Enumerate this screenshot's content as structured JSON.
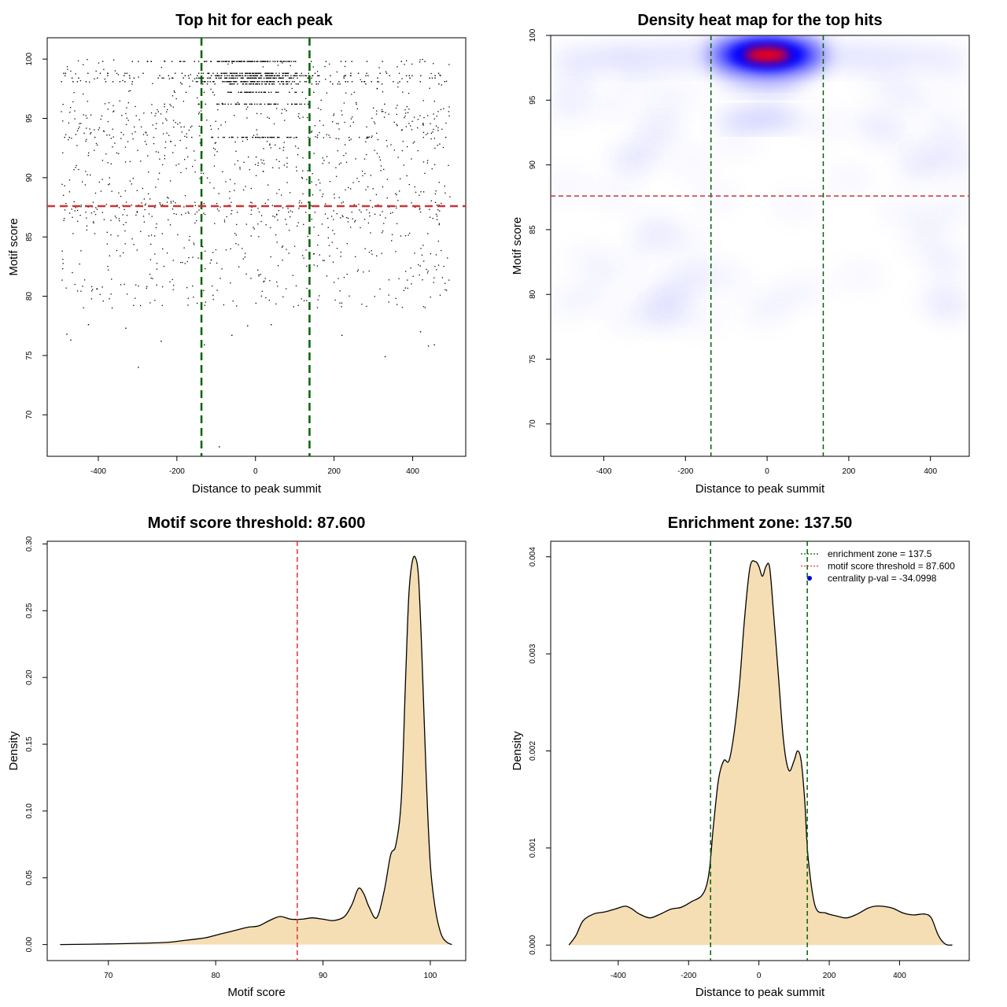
{
  "chart_data": [
    {
      "id": "scatter",
      "type": "scatter",
      "title": "Top hit for each peak",
      "xlabel": "Distance to peak summit",
      "ylabel": "Motif score",
      "xlim": [
        -530,
        535
      ],
      "ylim": [
        66.5,
        101.8
      ],
      "xticks": [
        -400,
        -200,
        0,
        200,
        400
      ],
      "yticks": [
        70,
        75,
        80,
        85,
        90,
        95,
        100
      ],
      "vlines": [
        -137.5,
        137.5
      ],
      "hline": 87.6,
      "vline_color": "#006400",
      "hline_color": "#cd3333",
      "point_color": "#000000",
      "x_range": [
        -500,
        500
      ],
      "dense_score_levels": [
        99.8,
        98.8,
        98.6,
        98.4,
        98.1,
        97.9,
        97.2,
        96.2,
        93.4
      ],
      "points": [
        [
          -92,
          67.3
        ],
        [
          -298,
          74.0
        ],
        [
          -470,
          76.3
        ],
        [
          -480,
          76.8
        ],
        [
          -240,
          76.2
        ],
        [
          330,
          74.9
        ],
        [
          -425,
          77.6
        ],
        [
          -330,
          77.3
        ],
        [
          220,
          76.7
        ],
        [
          -20,
          77.5
        ],
        [
          40,
          77.6
        ],
        [
          440,
          75.8
        ],
        [
          455,
          75.9
        ],
        [
          -60,
          76.7
        ],
        [
          -130,
          75.9
        ],
        [
          420,
          77.0
        ]
      ]
    },
    {
      "id": "heatmap",
      "type": "heatmap",
      "title": "Density heat map for the top hits",
      "xlabel": "Distance to peak summit",
      "ylabel": "Motif score",
      "xlim": [
        -530,
        495
      ],
      "ylim": [
        67.5,
        100
      ],
      "xticks": [
        -400,
        -200,
        0,
        200,
        400
      ],
      "yticks": [
        70,
        75,
        80,
        85,
        90,
        95,
        100
      ],
      "vlines": [
        -137.5,
        137.5
      ],
      "hline": 87.6,
      "peak": [
        0,
        98.5
      ],
      "colors": [
        "#ffffff",
        "#0000ff",
        "#ff0000"
      ]
    },
    {
      "id": "scoredensity",
      "type": "area",
      "title": "Motif score threshold: 87.600",
      "xlabel": "Motif score",
      "ylabel": "Density",
      "xlim": [
        64.3,
        103.3
      ],
      "ylim": [
        -0.012,
        0.302
      ],
      "xticks": [
        70,
        80,
        90,
        100
      ],
      "yticks": [
        0.0,
        0.05,
        0.1,
        0.15,
        0.2,
        0.25,
        0.3
      ],
      "ytick_labels": [
        "0.00",
        "0.05",
        "0.10",
        "0.15",
        "0.20",
        "0.25",
        "0.30"
      ],
      "vline": 87.6,
      "vline_color": "#ee2c2c",
      "fill": "#f5deb3",
      "x": [
        65.5,
        70,
        75,
        77,
        79,
        80,
        81,
        82,
        83,
        84,
        85,
        86,
        87,
        88,
        89,
        90,
        91,
        92,
        92.7,
        93.3,
        93.8,
        94.3,
        95,
        95.7,
        96.3,
        96.8,
        97.3,
        97.7,
        98,
        98.3,
        98.6,
        98.9,
        99.2,
        99.6,
        100,
        100.5,
        101,
        101.5,
        102
      ],
      "y": [
        0.0,
        0.0005,
        0.0015,
        0.003,
        0.005,
        0.007,
        0.009,
        0.011,
        0.013,
        0.014,
        0.018,
        0.021,
        0.019,
        0.019,
        0.02,
        0.019,
        0.018,
        0.021,
        0.03,
        0.042,
        0.038,
        0.028,
        0.02,
        0.04,
        0.067,
        0.075,
        0.11,
        0.2,
        0.262,
        0.286,
        0.29,
        0.275,
        0.22,
        0.13,
        0.06,
        0.025,
        0.008,
        0.002,
        0.0
      ]
    },
    {
      "id": "distdensity",
      "type": "area",
      "title": "Enrichment zone: 137.50",
      "xlabel": "Distance to peak summit",
      "ylabel": "Density",
      "xlim": [
        -592,
        598
      ],
      "ylim": [
        -0.00016,
        0.00416
      ],
      "xticks": [
        -400,
        -200,
        0,
        200,
        400
      ],
      "yticks": [
        0.0,
        0.001,
        0.002,
        0.003,
        0.004
      ],
      "ytick_labels": [
        "0.000",
        "0.001",
        "0.002",
        "0.003",
        "0.004"
      ],
      "vlines": [
        -137.5,
        137.5
      ],
      "vline_color": "#006400",
      "fill": "#f5deb3",
      "x": [
        -540,
        -520,
        -500,
        -470,
        -440,
        -410,
        -380,
        -360,
        -340,
        -310,
        -280,
        -250,
        -220,
        -190,
        -165,
        -150,
        -140,
        -130,
        -115,
        -100,
        -85,
        -70,
        -55,
        -40,
        -25,
        -10,
        0,
        10,
        20,
        30,
        40,
        55,
        70,
        85,
        100,
        110,
        120,
        130,
        140,
        160,
        190,
        220,
        250,
        280,
        310,
        330,
        350,
        380,
        410,
        440,
        470,
        490,
        510,
        530,
        550
      ],
      "y": [
        0.0,
        0.0001,
        0.00025,
        0.00032,
        0.00034,
        0.00037,
        0.0004,
        0.00037,
        0.00032,
        0.00028,
        0.00032,
        0.00037,
        0.00039,
        0.00045,
        0.0005,
        0.0006,
        0.0008,
        0.0012,
        0.0017,
        0.0019,
        0.0019,
        0.0022,
        0.0027,
        0.0034,
        0.0039,
        0.00395,
        0.0039,
        0.0038,
        0.0039,
        0.0039,
        0.0035,
        0.0028,
        0.0021,
        0.0018,
        0.0019,
        0.002,
        0.0019,
        0.0015,
        0.0009,
        0.0004,
        0.00033,
        0.0003,
        0.00028,
        0.00032,
        0.00038,
        0.0004,
        0.0004,
        0.00038,
        0.00033,
        0.00031,
        0.00032,
        0.00028,
        0.0001,
        1e-05,
        0.0
      ],
      "legend": {
        "position": "top-right",
        "items": [
          {
            "label": "enrichment zone = 137.5",
            "color": "#006400",
            "kind": "line"
          },
          {
            "label": "motif score threshold = 87.600",
            "color": "#ee2c2c",
            "kind": "line"
          },
          {
            "label": "centrality p-val = -34.0998",
            "color": "#0000cd",
            "kind": "point"
          }
        ]
      }
    }
  ]
}
